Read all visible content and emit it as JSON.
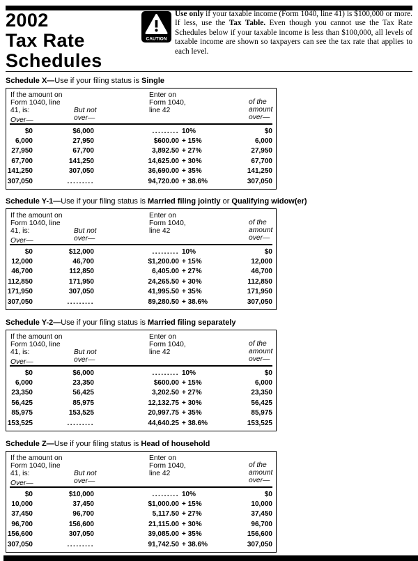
{
  "header": {
    "year": "2002",
    "title_line2": "Tax Rate",
    "title_line3": "Schedules",
    "caution_label": "CAUTION",
    "notice_segments": [
      {
        "text": "Use only",
        "bold": true
      },
      {
        "text": " if your taxable income (Form 1040, line 41) is $100,000 or more. If less, use the ",
        "bold": false
      },
      {
        "text": "Tax Table.",
        "bold": true
      },
      {
        "text": " Even though you cannot use the Tax Rate Schedules below if your taxable income is less than $100,000, all levels of taxable income are shown so taxpayers can see the tax rate that applies to each level.",
        "bold": false
      }
    ]
  },
  "table_headers": {
    "col1_lines": [
      "If the amount on",
      "Form 1040, line",
      "41, is:"
    ],
    "col1_over": "Over—",
    "col2_lines": [
      "But not",
      "over—"
    ],
    "col3_lines": [
      "Enter on",
      "Form 1040,",
      "line 42"
    ],
    "col4_lines": [
      "of the",
      "amount",
      "over—"
    ]
  },
  "schedules": [
    {
      "id": "X",
      "title_parts": [
        {
          "text": "Schedule X—",
          "bold": true
        },
        {
          "text": "Use if your filing status is ",
          "bold": false
        },
        {
          "text": "Single",
          "bold": true
        }
      ],
      "rows": [
        {
          "over": "$0",
          "but_not_over": "$6,000",
          "tax_base": ".........",
          "tax_rate": "10%",
          "of_amount_over": "$0"
        },
        {
          "over": "6,000",
          "but_not_over": "27,950",
          "tax_base": "$600.00",
          "tax_rate": "+ 15%",
          "of_amount_over": "6,000"
        },
        {
          "over": "27,950",
          "but_not_over": "67,700",
          "tax_base": "3,892.50",
          "tax_rate": "+ 27%",
          "of_amount_over": "27,950"
        },
        {
          "over": "67,700",
          "but_not_over": "141,250",
          "tax_base": "14,625.00",
          "tax_rate": "+ 30%",
          "of_amount_over": "67,700"
        },
        {
          "over": "141,250",
          "but_not_over": "307,050",
          "tax_base": "36,690.00",
          "tax_rate": "+ 35%",
          "of_amount_over": "141,250"
        },
        {
          "over": "307,050",
          "but_not_over": ".........",
          "tax_base": "94,720.00",
          "tax_rate": "+ 38.6%",
          "of_amount_over": "307,050"
        }
      ]
    },
    {
      "id": "Y-1",
      "title_parts": [
        {
          "text": "Schedule Y-1—",
          "bold": true
        },
        {
          "text": "Use if your filing status is ",
          "bold": false
        },
        {
          "text": "Married filing jointly",
          "bold": true
        },
        {
          "text": " or ",
          "bold": false
        },
        {
          "text": "Qualifying widow(er)",
          "bold": true
        }
      ],
      "rows": [
        {
          "over": "$0",
          "but_not_over": "$12,000",
          "tax_base": ".........",
          "tax_rate": "10%",
          "of_amount_over": "$0"
        },
        {
          "over": "12,000",
          "but_not_over": "46,700",
          "tax_base": "$1,200.00",
          "tax_rate": "+ 15%",
          "of_amount_over": "12,000"
        },
        {
          "over": "46,700",
          "but_not_over": "112,850",
          "tax_base": "6,405.00",
          "tax_rate": "+ 27%",
          "of_amount_over": "46,700"
        },
        {
          "over": "112,850",
          "but_not_over": "171,950",
          "tax_base": "24,265.50",
          "tax_rate": "+ 30%",
          "of_amount_over": "112,850"
        },
        {
          "over": "171,950",
          "but_not_over": "307,050",
          "tax_base": "41,995.50",
          "tax_rate": "+ 35%",
          "of_amount_over": "171,950"
        },
        {
          "over": "307,050",
          "but_not_over": ".........",
          "tax_base": "89,280.50",
          "tax_rate": "+ 38.6%",
          "of_amount_over": "307,050"
        }
      ]
    },
    {
      "id": "Y-2",
      "title_parts": [
        {
          "text": "Schedule Y-2—",
          "bold": true
        },
        {
          "text": "Use if your filing status is ",
          "bold": false
        },
        {
          "text": "Married filing separately",
          "bold": true
        }
      ],
      "rows": [
        {
          "over": "$0",
          "but_not_over": "$6,000",
          "tax_base": ".........",
          "tax_rate": "10%",
          "of_amount_over": "$0"
        },
        {
          "over": "6,000",
          "but_not_over": "23,350",
          "tax_base": "$600.00",
          "tax_rate": "+ 15%",
          "of_amount_over": "6,000"
        },
        {
          "over": "23,350",
          "but_not_over": "56,425",
          "tax_base": "3,202.50",
          "tax_rate": "+ 27%",
          "of_amount_over": "23,350"
        },
        {
          "over": "56,425",
          "but_not_over": "85,975",
          "tax_base": "12,132.75",
          "tax_rate": "+ 30%",
          "of_amount_over": "56,425"
        },
        {
          "over": "85,975",
          "but_not_over": "153,525",
          "tax_base": "20,997.75",
          "tax_rate": "+ 35%",
          "of_amount_over": "85,975"
        },
        {
          "over": "153,525",
          "but_not_over": ".........",
          "tax_base": "44,640.25",
          "tax_rate": "+ 38.6%",
          "of_amount_over": "153,525"
        }
      ]
    },
    {
      "id": "Z",
      "title_parts": [
        {
          "text": "Schedule Z—",
          "bold": true
        },
        {
          "text": "Use if your filing status is ",
          "bold": false
        },
        {
          "text": "Head of household",
          "bold": true
        }
      ],
      "rows": [
        {
          "over": "$0",
          "but_not_over": "$10,000",
          "tax_base": ".........",
          "tax_rate": "10%",
          "of_amount_over": "$0"
        },
        {
          "over": "10,000",
          "but_not_over": "37,450",
          "tax_base": "$1,000.00",
          "tax_rate": "+ 15%",
          "of_amount_over": "10,000"
        },
        {
          "over": "37,450",
          "but_not_over": "96,700",
          "tax_base": "5,117.50",
          "tax_rate": "+ 27%",
          "of_amount_over": "37,450"
        },
        {
          "over": "96,700",
          "but_not_over": "156,600",
          "tax_base": "21,115.00",
          "tax_rate": "+ 30%",
          "of_amount_over": "96,700"
        },
        {
          "over": "156,600",
          "but_not_over": "307,050",
          "tax_base": "39,085.00",
          "tax_rate": "+ 35%",
          "of_amount_over": "156,600"
        },
        {
          "over": "307,050",
          "but_not_over": ".........",
          "tax_base": "91,742.50",
          "tax_rate": "+ 38.6%",
          "of_amount_over": "307,050"
        }
      ]
    }
  ]
}
